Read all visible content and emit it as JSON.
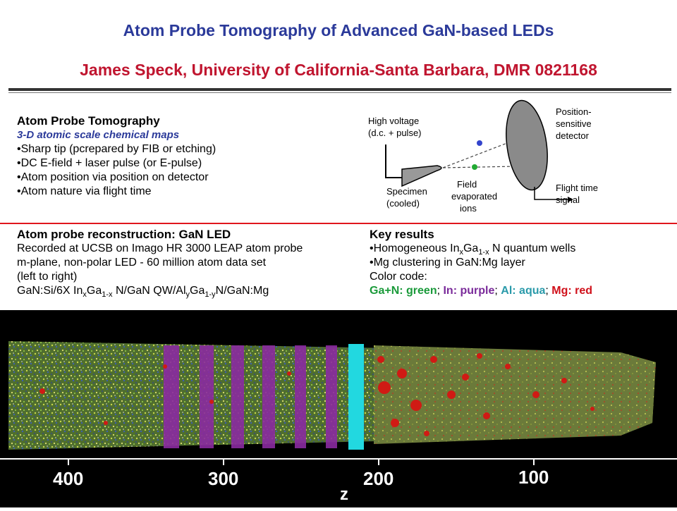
{
  "header": {
    "title": "Atom Probe Tomography of Advanced GaN-based LEDs",
    "subtitle": "James Speck, University of California-Santa Barbara, DMR 0821168"
  },
  "apt_section": {
    "heading": "Atom Probe Tomography",
    "subheading": "3-D atomic scale chemical maps",
    "bullets": [
      "•Sharp tip (pcrepared by FIB or etching)",
      "•DC E-field + laser pulse (or E-pulse)",
      "•Atom position via position on detector",
      "•Atom nature via flight time"
    ]
  },
  "diagram": {
    "high_voltage": [
      "High voltage",
      "(d.c. + pulse)"
    ],
    "specimen": [
      "Specimen",
      "(cooled)"
    ],
    "field_ions": [
      "Field",
      "evaporated",
      "ions"
    ],
    "detector": [
      "Position-",
      "sensitive",
      "detector"
    ],
    "flight_time": [
      "Flight time",
      "signal"
    ]
  },
  "reconstruction": {
    "heading": "Atom probe reconstruction:  GaN LED",
    "line1": "Recorded at UCSB on Imago HR 3000 LEAP atom probe",
    "line2": "m-plane, non-polar LED  -  60 million atom data set",
    "line3": "(left to right)",
    "formula_prefix": "GaN:Si/6X In",
    "formula_x": "x",
    "formula_ga": "Ga",
    "formula_1x": "1-x",
    "formula_mid": " N/GaN QW/Al",
    "formula_y": "y",
    "formula_ga2": "Ga",
    "formula_1y": "1-y",
    "formula_end": "N/GaN:Mg"
  },
  "key_results": {
    "heading": "Key results",
    "bullet1_prefix": "•Homogeneous In",
    "bullet1_x": "x",
    "bullet1_ga": "Ga",
    "bullet1_1x": "1-x",
    "bullet1_end": " N quantum wells",
    "bullet2": "•Mg clustering in GaN:Mg layer",
    "color_code_label": "Color code:",
    "codes": [
      {
        "text": "Ga+N: green",
        "color": "#1a9a3a"
      },
      {
        "text": "In: purple",
        "color": "#7a2a9a"
      },
      {
        "text": "Al:  aqua",
        "color": "#2a9aaa"
      },
      {
        "text": "Mg: red",
        "color": "#d0101a"
      }
    ]
  },
  "axis": {
    "ticks": [
      "400",
      "300",
      "200",
      "100"
    ],
    "label": "z"
  }
}
